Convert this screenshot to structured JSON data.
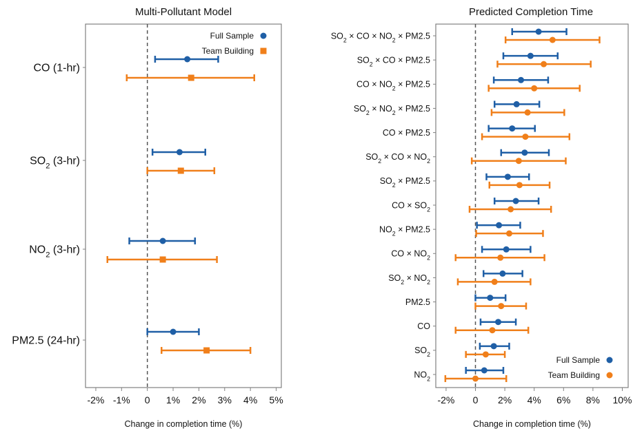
{
  "colors": {
    "full_sample": "#1f5fa6",
    "team_building": "#f07f1a",
    "frame": "#808080",
    "zero_line": "#555555"
  },
  "chart_data": [
    {
      "type": "scatter",
      "title": "Multi-Pollutant Model",
      "xlabel": "Change in completion time (%)",
      "xlim": [
        -2.4,
        5.2
      ],
      "xticks": [
        -2,
        -1,
        0,
        1,
        2,
        3,
        4,
        5
      ],
      "xtick_labels": [
        "-2%",
        "-1%",
        "0",
        "1%",
        "2%",
        "3%",
        "4%",
        "5%"
      ],
      "zero_line": true,
      "legend": "top-right",
      "categories": [
        {
          "label": "CO (1-hr)",
          "html": "CO (1-hr)"
        },
        {
          "label": "SO2 (3-hr)",
          "html": "SO<tspan baseline-shift=\"sub\" font-size=\"70%\">2</tspan> (3-hr)"
        },
        {
          "label": "NO2 (3-hr)",
          "html": "NO<tspan baseline-shift=\"sub\" font-size=\"70%\">2</tspan> (3-hr)"
        },
        {
          "label": "PM2.5 (24-hr)",
          "html": "PM2.5 (24-hr)"
        }
      ],
      "series": [
        {
          "name": "Full Sample",
          "marker": "circle",
          "values": [
            1.55,
            1.25,
            0.6,
            1.0
          ],
          "lower": [
            0.3,
            0.2,
            -0.7,
            0.0
          ],
          "upper": [
            2.75,
            2.25,
            1.85,
            2.0
          ]
        },
        {
          "name": "Team Building",
          "marker": "square",
          "values": [
            1.7,
            1.3,
            0.6,
            2.3
          ],
          "lower": [
            -0.8,
            0.0,
            -1.55,
            0.55
          ],
          "upper": [
            4.15,
            2.6,
            2.7,
            4.0
          ]
        }
      ]
    },
    {
      "type": "scatter",
      "title": "Predicted Completion Time",
      "xlabel": "Change in completion time (%)",
      "xlim": [
        -2.7,
        10.4
      ],
      "xticks": [
        -2,
        0,
        2,
        4,
        6,
        8,
        10
      ],
      "xtick_labels": [
        "-2%",
        "0",
        "2%",
        "4%",
        "6%",
        "8%",
        "10%"
      ],
      "zero_line": true,
      "legend": "bottom-right",
      "categories": [
        {
          "label": "SO2 × CO × NO2 × PM2.5",
          "html": "SO<tspan baseline-shift=\"sub\" font-size=\"70%\">2</tspan> × CO × NO<tspan baseline-shift=\"sub\" font-size=\"70%\">2</tspan> × PM2.5"
        },
        {
          "label": "SO2 × CO × PM2.5",
          "html": "SO<tspan baseline-shift=\"sub\" font-size=\"70%\">2</tspan> × CO × PM2.5"
        },
        {
          "label": "CO × NO2 × PM2.5",
          "html": "CO × NO<tspan baseline-shift=\"sub\" font-size=\"70%\">2</tspan> × PM2.5"
        },
        {
          "label": "SO2 × NO2 × PM2.5",
          "html": "SO<tspan baseline-shift=\"sub\" font-size=\"70%\">2</tspan> × NO<tspan baseline-shift=\"sub\" font-size=\"70%\">2</tspan> × PM2.5"
        },
        {
          "label": "CO × PM2.5",
          "html": "CO × PM2.5"
        },
        {
          "label": "SO2 × CO × NO2",
          "html": "SO<tspan baseline-shift=\"sub\" font-size=\"70%\">2</tspan> × CO × NO<tspan baseline-shift=\"sub\" font-size=\"70%\">2</tspan>"
        },
        {
          "label": "SO2 × PM2.5",
          "html": "SO<tspan baseline-shift=\"sub\" font-size=\"70%\">2</tspan> × PM2.5"
        },
        {
          "label": "CO × SO2",
          "html": "CO × SO<tspan baseline-shift=\"sub\" font-size=\"70%\">2</tspan>"
        },
        {
          "label": "NO2 × PM2.5",
          "html": "NO<tspan baseline-shift=\"sub\" font-size=\"70%\">2</tspan> × PM2.5"
        },
        {
          "label": "CO × NO2",
          "html": "CO × NO<tspan baseline-shift=\"sub\" font-size=\"70%\">2</tspan>"
        },
        {
          "label": "SO2 × NO2",
          "html": "SO<tspan baseline-shift=\"sub\" font-size=\"70%\">2</tspan> × NO<tspan baseline-shift=\"sub\" font-size=\"70%\">2</tspan>"
        },
        {
          "label": "PM2.5",
          "html": "PM2.5"
        },
        {
          "label": "CO",
          "html": "CO"
        },
        {
          "label": "SO2",
          "html": "SO<tspan baseline-shift=\"sub\" font-size=\"70%\">2</tspan>"
        },
        {
          "label": "NO2",
          "html": "NO<tspan baseline-shift=\"sub\" font-size=\"70%\">2</tspan>"
        }
      ],
      "series": [
        {
          "name": "Full Sample",
          "marker": "circle",
          "values": [
            4.3,
            3.75,
            3.1,
            2.8,
            2.5,
            3.35,
            2.2,
            2.75,
            1.6,
            2.1,
            1.85,
            1.0,
            1.55,
            1.25,
            0.6
          ],
          "lower": [
            2.5,
            1.9,
            1.25,
            1.3,
            0.9,
            1.75,
            0.75,
            1.3,
            0.1,
            0.45,
            0.55,
            0.0,
            0.35,
            0.3,
            -0.65
          ],
          "upper": [
            6.2,
            5.6,
            4.95,
            4.35,
            4.05,
            5.0,
            3.65,
            4.3,
            3.05,
            3.75,
            3.2,
            2.05,
            2.75,
            2.3,
            1.9
          ]
        },
        {
          "name": "Team Building",
          "marker": "circle",
          "values": [
            5.25,
            4.65,
            4.0,
            3.55,
            3.4,
            2.95,
            3.0,
            2.4,
            2.3,
            1.7,
            1.3,
            1.75,
            1.15,
            0.7,
            0.0
          ],
          "lower": [
            2.05,
            1.5,
            0.9,
            1.1,
            0.45,
            -0.25,
            0.95,
            -0.4,
            0.05,
            -1.35,
            -1.2,
            0.0,
            -1.35,
            -0.65,
            -2.05
          ],
          "upper": [
            8.45,
            7.85,
            7.1,
            6.05,
            6.4,
            6.15,
            5.05,
            5.15,
            4.6,
            4.7,
            3.75,
            3.45,
            3.6,
            2.0,
            2.1
          ]
        }
      ]
    }
  ]
}
